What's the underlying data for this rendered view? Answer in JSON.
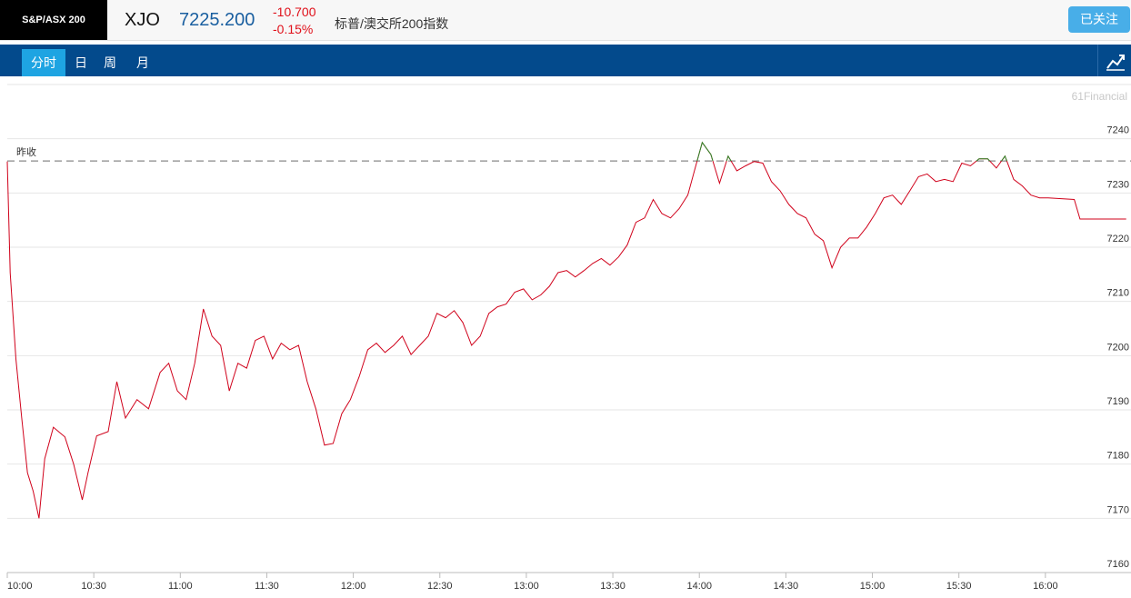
{
  "header": {
    "badge": "S&P/ASX 200",
    "symbol": "XJO",
    "price": "7225.200",
    "change": "-10.700",
    "change_pct": "-0.15%",
    "name": "标普/澳交所200指数",
    "follow_button": "已关注"
  },
  "tabs": [
    "分时",
    "日",
    "周",
    "月"
  ],
  "active_tab": 0,
  "watermark": "61Financial",
  "chart_data": {
    "type": "line",
    "x": [
      "10:00",
      "10:01",
      "10:03",
      "10:05",
      "10:07",
      "10:09",
      "10:11",
      "10:13",
      "10:16",
      "10:20",
      "10:23",
      "10:26",
      "10:28",
      "10:31",
      "10:35",
      "10:38",
      "10:41",
      "10:45",
      "10:49",
      "10:53",
      "10:56",
      "10:59",
      "11:02",
      "11:05",
      "11:08",
      "11:11",
      "11:14",
      "11:17",
      "11:20",
      "11:23",
      "11:26",
      "11:29",
      "11:32",
      "11:35",
      "11:38",
      "11:41",
      "11:44",
      "11:47",
      "11:50",
      "11:53",
      "11:56",
      "11:59",
      "12:02",
      "12:05",
      "12:08",
      "12:11",
      "12:14",
      "12:17",
      "12:20",
      "12:23",
      "12:26",
      "12:29",
      "12:32",
      "12:35",
      "12:38",
      "12:41",
      "12:44",
      "12:47",
      "12:50",
      "12:53",
      "12:56",
      "12:59",
      "13:02",
      "13:05",
      "13:08",
      "13:11",
      "13:14",
      "13:17",
      "13:20",
      "13:23",
      "13:26",
      "13:29",
      "13:32",
      "13:35",
      "13:38",
      "13:41",
      "13:44",
      "13:47",
      "13:50",
      "13:53",
      "13:56",
      "13:59",
      "14:01",
      "14:04",
      "14:07",
      "14:10",
      "14:13",
      "14:16",
      "14:19",
      "14:22",
      "14:25",
      "14:28",
      "14:31",
      "14:34",
      "14:37",
      "14:40",
      "14:43",
      "14:46",
      "14:49",
      "14:52",
      "14:55",
      "14:58",
      "15:01",
      "15:04",
      "15:07",
      "15:10",
      "15:13",
      "15:16",
      "15:19",
      "15:22",
      "15:25",
      "15:28",
      "15:31",
      "15:34",
      "15:37",
      "15:40",
      "15:43",
      "15:46",
      "15:49",
      "15:52",
      "15:55",
      "15:58",
      "16:01",
      "16:10",
      "16:12",
      "16:28"
    ],
    "values": [
      7235.8,
      7215.3,
      7199.4,
      7188.5,
      7178.4,
      7175,
      7170,
      7181,
      7186.8,
      7185,
      7180,
      7173.4,
      7178.4,
      7185.2,
      7186,
      7195.2,
      7188.5,
      7191.9,
      7190.2,
      7196.9,
      7198.6,
      7193.5,
      7191.9,
      7198.6,
      7208.6,
      7203.6,
      7201.9,
      7193.5,
      7198.6,
      7197.7,
      7202.8,
      7203.6,
      7199.4,
      7202.3,
      7201.1,
      7201.9,
      7195.2,
      7190.2,
      7183.5,
      7183.8,
      7189.3,
      7191.9,
      7196.1,
      7201.1,
      7202.3,
      7200.6,
      7201.9,
      7203.6,
      7200.2,
      7201.9,
      7203.6,
      7207.8,
      7207,
      7208.3,
      7206.1,
      7201.9,
      7203.6,
      7207.8,
      7209,
      7209.5,
      7211.7,
      7212.3,
      7210.3,
      7211.2,
      7212.8,
      7215.3,
      7215.7,
      7214.5,
      7215.7,
      7217,
      7217.9,
      7216.7,
      7218.2,
      7220.4,
      7224.6,
      7225.4,
      7228.8,
      7226.2,
      7225.4,
      7227.1,
      7229.6,
      7235.5,
      7239.3,
      7237.1,
      7231.8,
      7236.8,
      7234.1,
      7235,
      7235.8,
      7235.5,
      7232.1,
      7230.4,
      7227.9,
      7226.2,
      7225.4,
      7222.4,
      7221.2,
      7216.2,
      7220,
      7221.7,
      7221.7,
      7223.7,
      7226.2,
      7229.1,
      7229.6,
      7227.9,
      7230.4,
      7233,
      7233.5,
      7232.1,
      7232.5,
      7232.1,
      7235.5,
      7235,
      7236.3,
      7236.3,
      7234.6,
      7236.8,
      7232.5,
      7231.3,
      7229.6,
      7229.1,
      7229.1,
      7228.8,
      7225.2,
      7225.2
    ],
    "color": "#d0021b",
    "color_above": "#2a8a2a",
    "reference_line": {
      "label": "昨收",
      "value": 7235.9
    },
    "xlim": [
      "10:00",
      "16:30"
    ],
    "xticks": [
      "10:00",
      "10:30",
      "11:00",
      "11:30",
      "12:00",
      "12:30",
      "13:00",
      "13:30",
      "14:00",
      "14:30",
      "15:00",
      "15:30",
      "16:00"
    ],
    "ylim": [
      7160,
      7250
    ],
    "yticks": [
      7160,
      7170,
      7180,
      7190,
      7200,
      7210,
      7220,
      7230,
      7240
    ],
    "grid": true
  }
}
